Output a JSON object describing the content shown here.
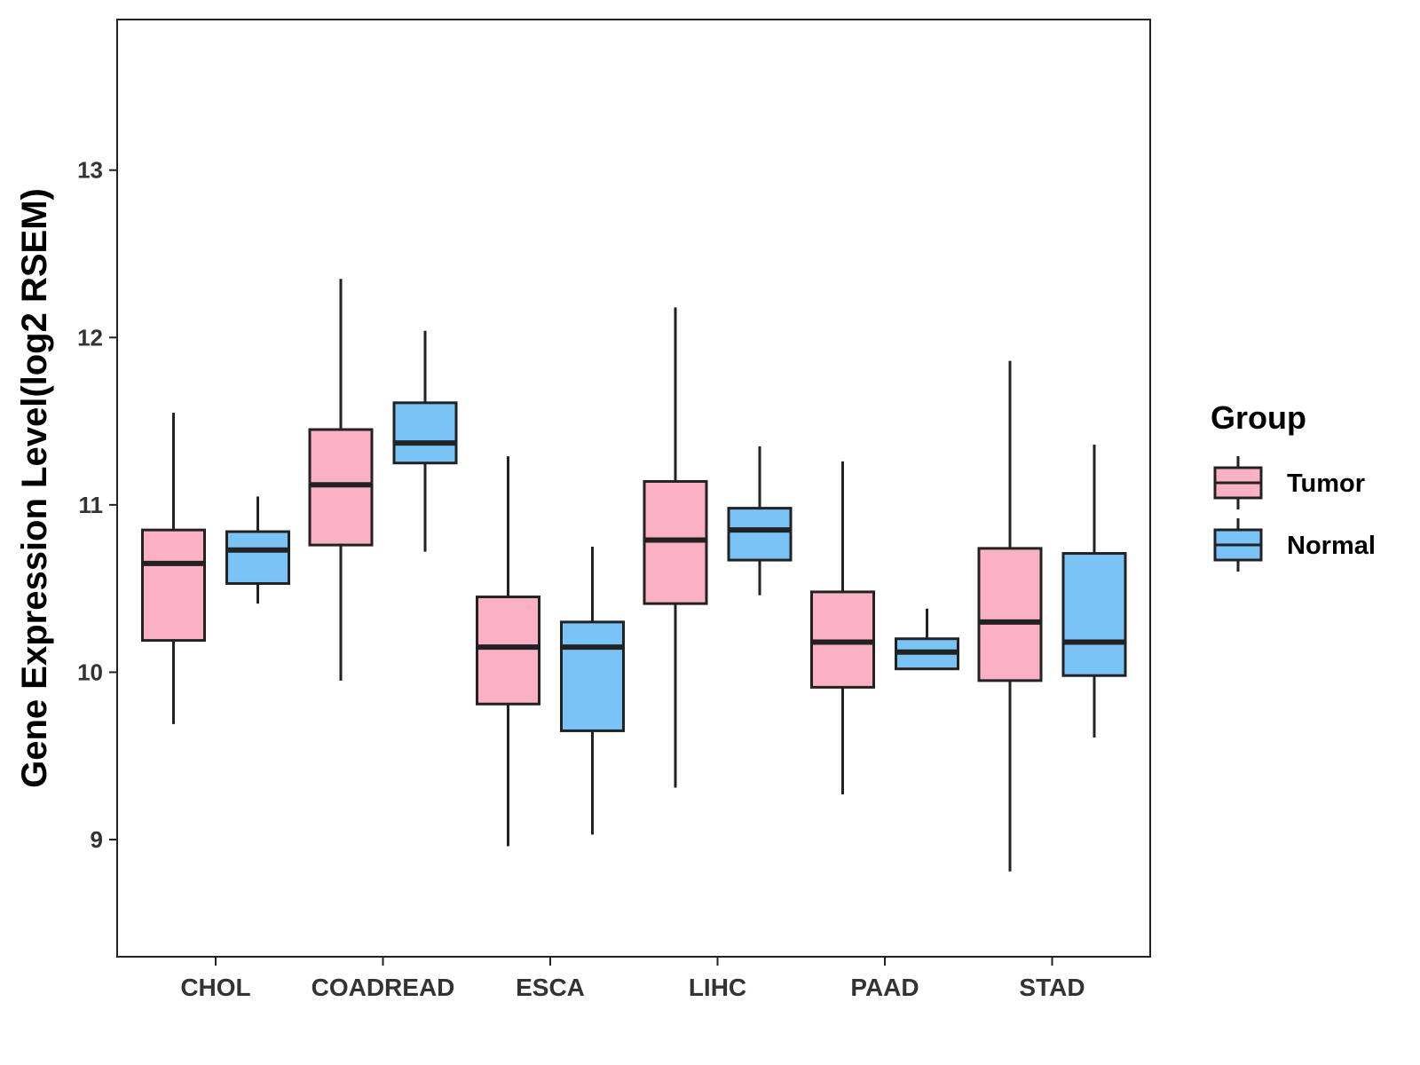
{
  "chart_data": {
    "type": "boxplot",
    "title": "",
    "xlabel": "",
    "ylabel": "Gene Expression Level(log2 RSEM)",
    "ylim": [
      8.3,
      13.9
    ],
    "yticks": [
      9,
      10,
      11,
      12,
      13
    ],
    "grid": false,
    "legend": {
      "title": "Group",
      "position": "right",
      "entries": [
        {
          "name": "Tumor",
          "color": "#FBB0C3"
        },
        {
          "name": "Normal",
          "color": "#7AC3F7"
        }
      ]
    },
    "categories": [
      "CHOL",
      "COADREAD",
      "ESCA",
      "LIHC",
      "PAAD",
      "STAD"
    ],
    "series": [
      {
        "name": "Tumor",
        "color": "#FBB0C3",
        "boxes": [
          {
            "min": 9.69,
            "q1": 10.19,
            "median": 10.65,
            "q3": 10.85,
            "max": 11.55
          },
          {
            "min": 9.95,
            "q1": 10.76,
            "median": 11.12,
            "q3": 11.45,
            "max": 12.35
          },
          {
            "min": 8.96,
            "q1": 9.81,
            "median": 10.15,
            "q3": 10.45,
            "max": 11.29
          },
          {
            "min": 9.31,
            "q1": 10.41,
            "median": 10.79,
            "q3": 11.14,
            "max": 12.18
          },
          {
            "min": 9.27,
            "q1": 9.91,
            "median": 10.18,
            "q3": 10.48,
            "max": 11.26
          },
          {
            "min": 8.81,
            "q1": 9.95,
            "median": 10.3,
            "q3": 10.74,
            "max": 11.86
          }
        ]
      },
      {
        "name": "Normal",
        "color": "#7AC3F7",
        "boxes": [
          {
            "min": 10.41,
            "q1": 10.53,
            "median": 10.73,
            "q3": 10.84,
            "max": 11.05
          },
          {
            "min": 10.72,
            "q1": 11.25,
            "median": 11.37,
            "q3": 11.61,
            "max": 12.04
          },
          {
            "min": 9.03,
            "q1": 9.65,
            "median": 10.15,
            "q3": 10.3,
            "max": 10.75
          },
          {
            "min": 10.46,
            "q1": 10.67,
            "median": 10.85,
            "q3": 10.98,
            "max": 11.35
          },
          {
            "min": 10.02,
            "q1": 10.02,
            "median": 10.12,
            "q3": 10.2,
            "max": 10.38
          },
          {
            "min": 9.61,
            "q1": 9.98,
            "median": 10.18,
            "q3": 10.71,
            "max": 11.36
          }
        ]
      }
    ]
  }
}
